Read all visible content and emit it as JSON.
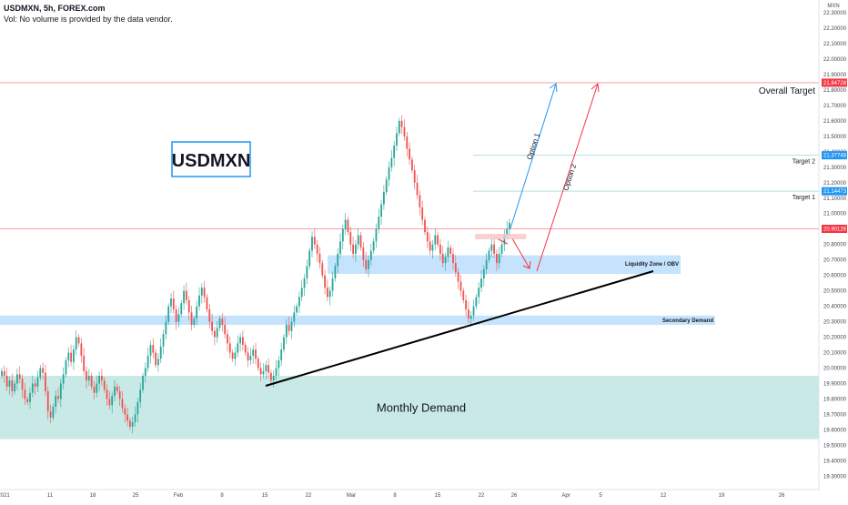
{
  "header": {
    "symbol_line": "USDMXN, 5h, FOREX.com",
    "vol_line": "Vol: No volume is provided by the data vendor."
  },
  "currency_badge": "MXN",
  "colors": {
    "up": "#26a69a",
    "down": "#ef5350",
    "zone_blue": "#bbdefb",
    "zone_green": "#b2dfdb",
    "option1": "#2196f3",
    "option2": "#f23645",
    "trendline": "#000000",
    "hline": "#f7a1a1",
    "target_line": "#b2dfdb"
  },
  "chart_data": {
    "type": "candlestick",
    "title": "USDMXN",
    "y_ticks": [
      "22.30000",
      "22.20000",
      "22.10000",
      "22.00000",
      "21.90000",
      "21.80000",
      "21.70000",
      "21.60000",
      "21.50000",
      "21.40000",
      "21.30000",
      "21.20000",
      "21.10000",
      "21.00000",
      "20.90000",
      "20.80000",
      "20.70000",
      "20.60000",
      "20.50000",
      "20.40000",
      "20.30000",
      "20.20000",
      "20.10000",
      "20.00000",
      "19.90000",
      "19.80000",
      "19.70000",
      "19.60000",
      "19.50000",
      "19.40000",
      "19.30000"
    ],
    "x_ticks": [
      "2021",
      "11",
      "18",
      "25",
      "Feb",
      "8",
      "15",
      "22",
      "Mar",
      "8",
      "15",
      "22",
      "26",
      "Apr",
      "5",
      "12",
      "19",
      "26"
    ],
    "price_labels": [
      {
        "value": 21.84728,
        "text": "21.84728",
        "color": "#f23645"
      },
      {
        "value": 21.37748,
        "text": "21.37748",
        "color": "#2196f3"
      },
      {
        "value": 21.14473,
        "text": "21.14473",
        "color": "#2196f3"
      },
      {
        "value": 20.90126,
        "text": "20.90126",
        "color": "#f23645"
      }
    ],
    "zones": [
      {
        "label": "Liquidity Zone  / OBV",
        "y_top": 20.73,
        "y_bottom": 20.61
      },
      {
        "label": "Secondary Demand",
        "y_top": 20.34,
        "y_bottom": 20.28
      },
      {
        "label": "Monthly Demand",
        "y_top": 19.95,
        "y_bottom": 19.54
      }
    ],
    "targets": [
      {
        "label": "Overall Target",
        "value": 21.84728
      },
      {
        "label": "Target 2",
        "value": 21.37748
      },
      {
        "label": "Target 1",
        "value": 21.14473
      }
    ],
    "arrows": [
      {
        "label": "Option 1"
      },
      {
        "label": "Option 2"
      }
    ],
    "candles_close": [
      19.98,
      19.95,
      19.88,
      19.92,
      19.85,
      19.9,
      19.96,
      19.93,
      19.86,
      19.8,
      19.78,
      19.84,
      19.9,
      19.88,
      19.94,
      20.0,
      19.97,
      19.85,
      19.72,
      19.68,
      19.75,
      19.82,
      19.8,
      19.9,
      19.96,
      20.05,
      20.1,
      20.04,
      20.12,
      20.2,
      20.16,
      20.08,
      19.98,
      19.92,
      19.95,
      19.88,
      19.84,
      19.9,
      19.95,
      19.92,
      19.86,
      19.8,
      19.76,
      19.82,
      19.88,
      19.85,
      19.8,
      19.74,
      19.7,
      19.66,
      19.62,
      19.65,
      19.7,
      19.78,
      19.86,
      19.95,
      20.0,
      20.08,
      20.15,
      20.1,
      20.02,
      20.06,
      20.14,
      20.22,
      20.3,
      20.4,
      20.45,
      20.38,
      20.3,
      20.35,
      20.42,
      20.5,
      20.44,
      20.36,
      20.28,
      20.32,
      20.4,
      20.47,
      20.52,
      20.46,
      20.38,
      20.3,
      20.24,
      20.2,
      20.26,
      20.32,
      20.28,
      20.22,
      20.16,
      20.1,
      20.06,
      20.1,
      20.16,
      20.2,
      20.15,
      20.1,
      20.05,
      20.08,
      20.12,
      20.06,
      20.0,
      19.96,
      19.98,
      20.02,
      19.97,
      19.92,
      19.95,
      20.0,
      20.05,
      20.12,
      20.2,
      20.28,
      20.24,
      20.3,
      20.36,
      20.4,
      20.46,
      20.52,
      20.58,
      20.66,
      20.76,
      20.85,
      20.8,
      20.74,
      20.68,
      20.6,
      20.52,
      20.46,
      20.5,
      20.58,
      20.66,
      20.74,
      20.82,
      20.9,
      20.96,
      20.88,
      20.8,
      20.74,
      20.8,
      20.86,
      20.78,
      20.7,
      20.64,
      20.7,
      20.76,
      20.82,
      20.9,
      20.98,
      21.06,
      21.14,
      21.22,
      21.3,
      21.36,
      21.44,
      21.52,
      21.6,
      21.56,
      21.5,
      21.42,
      21.35,
      21.28,
      21.2,
      21.12,
      21.04,
      20.96,
      20.88,
      20.82,
      20.76,
      20.8,
      20.86,
      20.8,
      20.74,
      20.68,
      20.72,
      20.78,
      20.74,
      20.68,
      20.62,
      20.56,
      20.5,
      20.44,
      20.38,
      20.32,
      20.34,
      20.4,
      20.46,
      20.52,
      20.58,
      20.64,
      20.7,
      20.76,
      20.8,
      20.74,
      20.68,
      20.74,
      20.8,
      20.86,
      20.9,
      20.94
    ]
  }
}
